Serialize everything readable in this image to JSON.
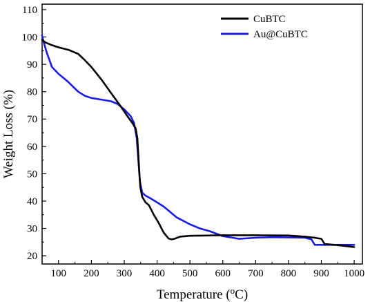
{
  "chart_data": {
    "type": "line",
    "title": "",
    "xlabel": "Temperature (°C)",
    "xlabel_parts": {
      "main": "Temperature (",
      "sup": "o",
      "end": "C)"
    },
    "ylabel": "Weight Loss (%)",
    "xlim": [
      50,
      1025
    ],
    "ylim": [
      17,
      112
    ],
    "xticks": [
      100,
      200,
      300,
      400,
      500,
      600,
      700,
      800,
      900,
      1000
    ],
    "yticks": [
      20,
      30,
      40,
      50,
      60,
      70,
      80,
      90,
      100,
      110
    ],
    "grid": false,
    "legend_position": "top-right",
    "series": [
      {
        "name": "CuBTC",
        "color": "#000000",
        "points": [
          [
            50,
            99
          ],
          [
            60,
            98
          ],
          [
            80,
            97
          ],
          [
            100,
            96.2
          ],
          [
            130,
            95.3
          ],
          [
            160,
            93.8
          ],
          [
            180,
            91.5
          ],
          [
            200,
            89
          ],
          [
            230,
            84.5
          ],
          [
            260,
            79.5
          ],
          [
            290,
            74.5
          ],
          [
            310,
            71
          ],
          [
            325,
            68.5
          ],
          [
            335,
            66.5
          ],
          [
            340,
            63
          ],
          [
            343,
            57
          ],
          [
            346,
            50
          ],
          [
            349,
            45
          ],
          [
            355,
            41.5
          ],
          [
            365,
            39.5
          ],
          [
            375,
            38.5
          ],
          [
            390,
            35
          ],
          [
            405,
            32
          ],
          [
            420,
            28.5
          ],
          [
            435,
            26.3
          ],
          [
            445,
            26
          ],
          [
            455,
            26.3
          ],
          [
            470,
            27
          ],
          [
            500,
            27.3
          ],
          [
            550,
            27.4
          ],
          [
            600,
            27.5
          ],
          [
            700,
            27.5
          ],
          [
            800,
            27.4
          ],
          [
            850,
            27
          ],
          [
            880,
            26.6
          ],
          [
            900,
            26.2
          ],
          [
            910,
            24.3
          ],
          [
            950,
            23.9
          ],
          [
            1000,
            23.2
          ]
        ]
      },
      {
        "name": "Au@CuBTC",
        "color": "#1a1ae6",
        "points": [
          [
            50,
            100.5
          ],
          [
            55,
            98
          ],
          [
            65,
            94
          ],
          [
            80,
            89
          ],
          [
            100,
            86.5
          ],
          [
            130,
            83.5
          ],
          [
            160,
            80
          ],
          [
            180,
            78.5
          ],
          [
            200,
            77.7
          ],
          [
            230,
            77.1
          ],
          [
            260,
            76.5
          ],
          [
            280,
            75.5
          ],
          [
            300,
            73.5
          ],
          [
            320,
            71
          ],
          [
            330,
            68.5
          ],
          [
            338,
            63
          ],
          [
            343,
            55
          ],
          [
            348,
            47
          ],
          [
            355,
            43
          ],
          [
            365,
            42
          ],
          [
            380,
            41
          ],
          [
            400,
            39.5
          ],
          [
            420,
            38
          ],
          [
            440,
            36
          ],
          [
            460,
            34
          ],
          [
            500,
            31.5
          ],
          [
            530,
            30
          ],
          [
            560,
            29
          ],
          [
            600,
            27.2
          ],
          [
            650,
            26.2
          ],
          [
            700,
            26.6
          ],
          [
            750,
            26.8
          ],
          [
            800,
            26.7
          ],
          [
            850,
            26.6
          ],
          [
            870,
            26
          ],
          [
            880,
            24
          ],
          [
            900,
            24
          ],
          [
            950,
            24
          ],
          [
            1000,
            24
          ]
        ]
      }
    ]
  }
}
